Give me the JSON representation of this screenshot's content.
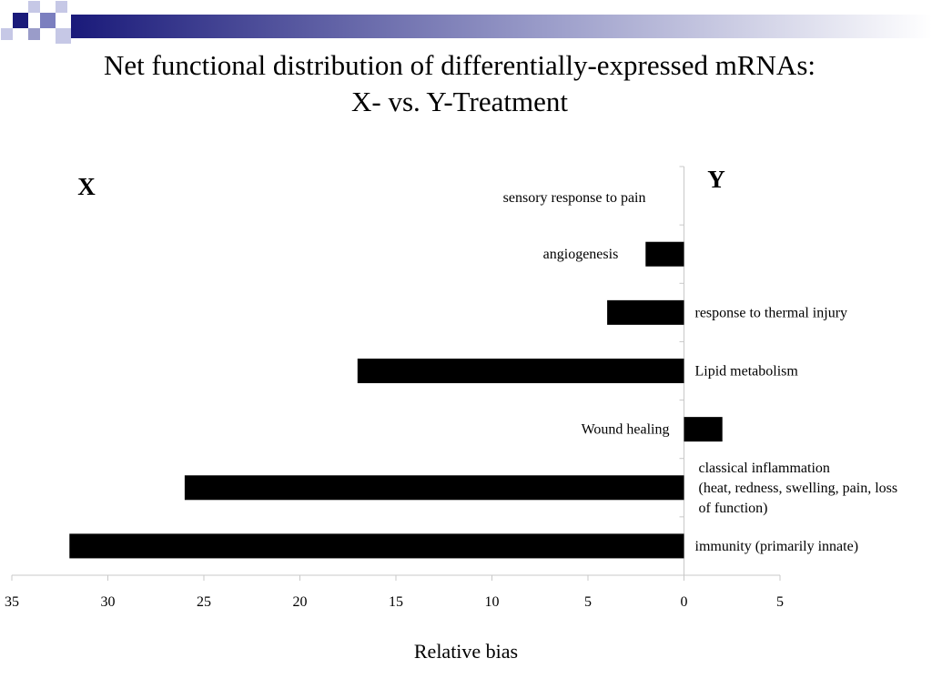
{
  "slide": {
    "title_line1": "Net functional distribution of differentially-expressed mRNAs:",
    "title_line2": "X- vs. Y-Treatment"
  },
  "colors": {
    "bar": "#000000",
    "axis": "#c8c8c8",
    "accent_dark": "#1a1a7a",
    "accent_mid": "#7b7fbf",
    "accent_light": "#c6c8e6"
  },
  "chart_data": {
    "type": "bar",
    "orientation": "horizontal",
    "side_labels": {
      "left": "X",
      "right": "Y"
    },
    "categories": [
      "sensory response to pain",
      "angiogenesis",
      "response to thermal injury",
      "Lipid  metabolism",
      "Wound healing",
      "classical inflammation (heat, redness, swelling, pain, loss of function)",
      "immunity (primarily innate)"
    ],
    "category_label_lines": [
      [
        "sensory response to pain"
      ],
      [
        "angiogenesis"
      ],
      [
        "response to thermal injury"
      ],
      [
        "Lipid  metabolism"
      ],
      [
        "Wound healing"
      ],
      [
        "classical inflammation",
        "(heat, redness, swelling, pain, loss",
        "of function)"
      ],
      [
        "immunity (primarily innate)"
      ]
    ],
    "values": [
      0,
      -2,
      -4,
      -17,
      2,
      -26,
      -32
    ],
    "xlabel": "Relative bias",
    "x_ticks": [
      "35",
      "30",
      "25",
      "20",
      "15",
      "10",
      "5",
      "0",
      "5"
    ],
    "x_tick_values": [
      -35,
      -30,
      -25,
      -20,
      -15,
      -10,
      -5,
      0,
      5
    ],
    "xlim": [
      -35,
      5
    ],
    "grid": false,
    "legend": "none"
  }
}
